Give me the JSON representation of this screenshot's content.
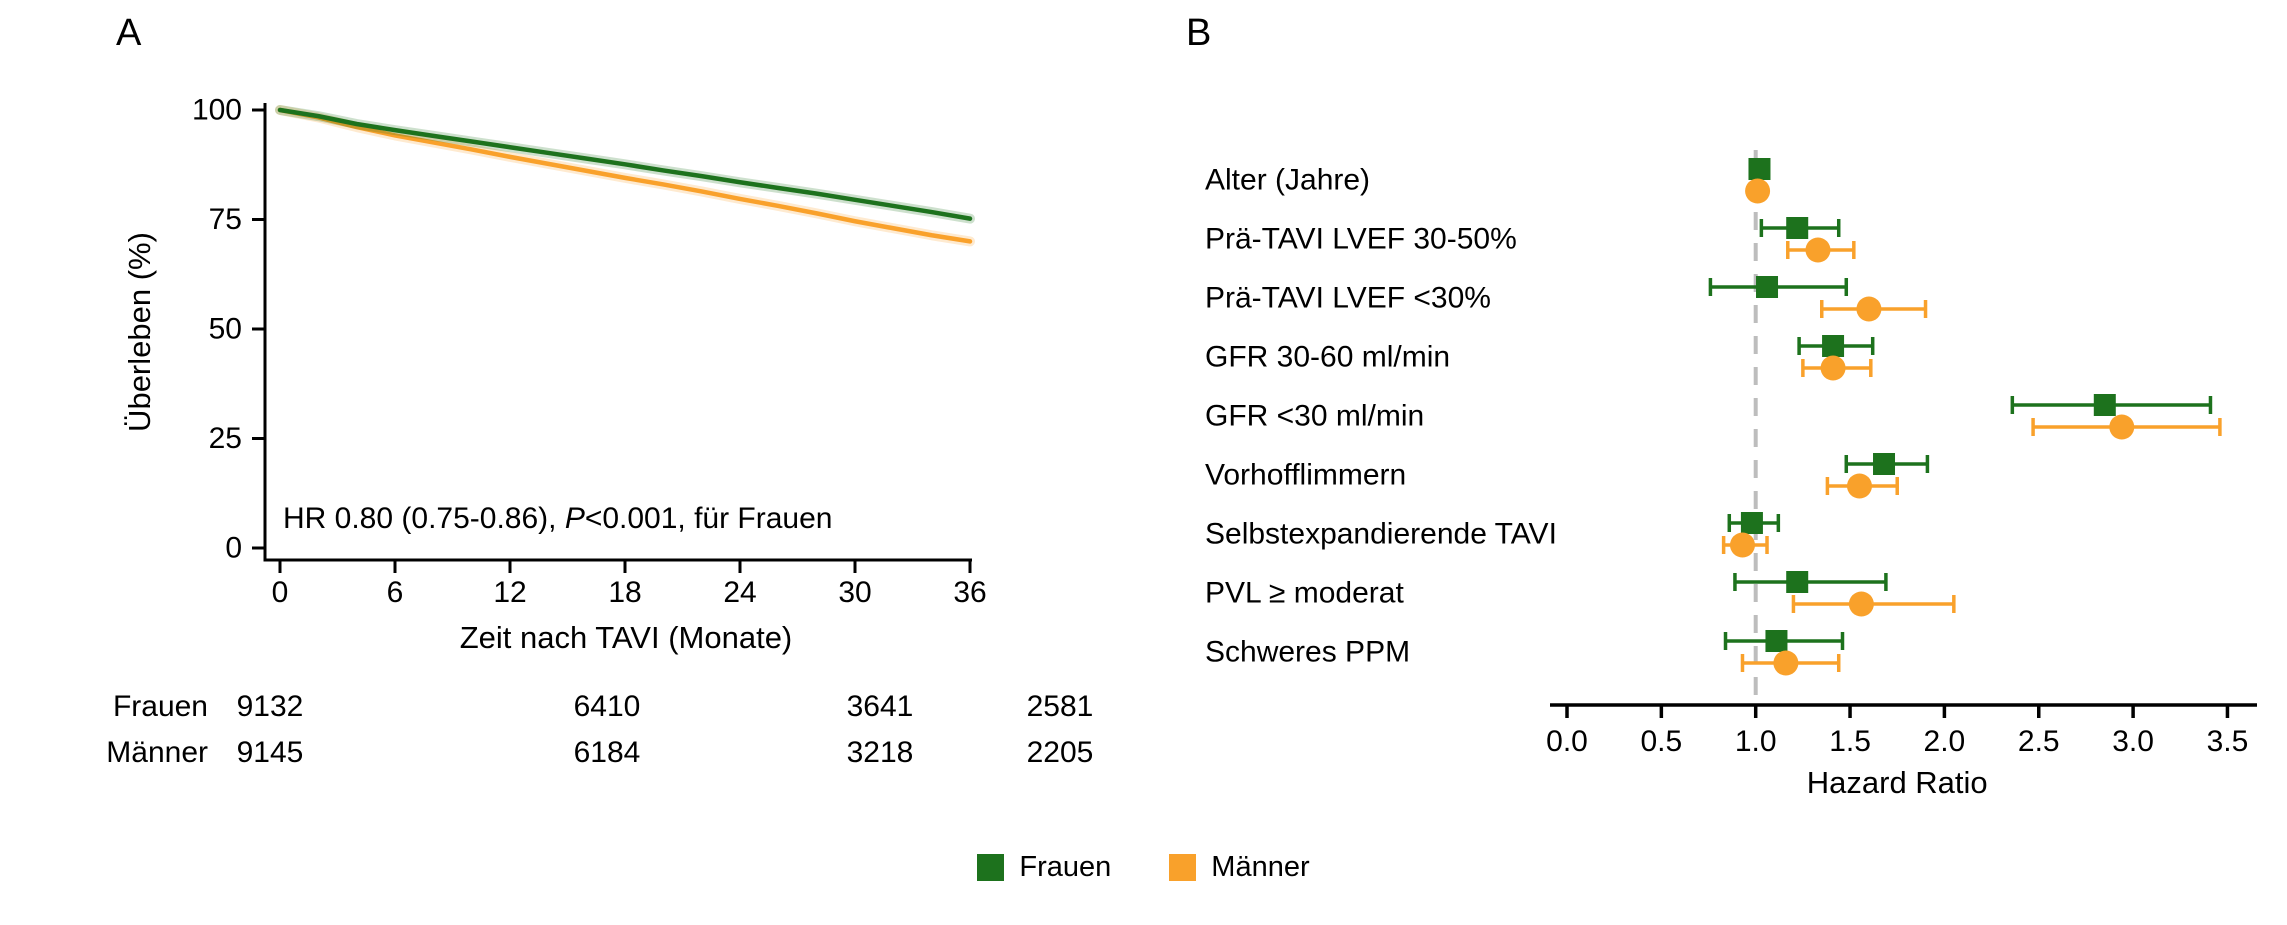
{
  "colors": {
    "frauen": "#1d721d",
    "maenner": "#F9A12B",
    "refline": "#bdbdbd",
    "axis": "#000000"
  },
  "legend": {
    "items": [
      {
        "label": "Frauen",
        "color": "#1d721d"
      },
      {
        "label": "Männer",
        "color": "#F9A12B"
      }
    ]
  },
  "chart_data": [
    {
      "type": "line",
      "variant": "kaplan-meier",
      "panel_label": "A",
      "xlabel": "Zeit nach TAVI (Monate)",
      "ylabel": "Überleben (%)",
      "xlim": [
        0,
        36
      ],
      "ylim": [
        0,
        100
      ],
      "xticks": [
        0,
        6,
        12,
        18,
        24,
        30,
        36
      ],
      "yticks": [
        0,
        25,
        50,
        75,
        100
      ],
      "grid": false,
      "annotation": {
        "pre": "HR 0.80 (0.75-0.86), ",
        "italic": "P",
        "post": "<0.001, für Frauen"
      },
      "series": [
        {
          "name": "Männer",
          "color": "#F9A12B",
          "x": [
            0,
            2,
            4,
            6,
            8,
            10,
            12,
            14,
            16,
            18,
            20,
            22,
            24,
            26,
            28,
            30,
            32,
            34,
            36
          ],
          "y": [
            100,
            98.3,
            96.1,
            94.2,
            92.6,
            91.0,
            89.3,
            87.7,
            86.1,
            84.5,
            83.0,
            81.4,
            79.7,
            78.1,
            76.4,
            74.6,
            73.0,
            71.4,
            70.0
          ]
        },
        {
          "name": "Frauen",
          "color": "#1d721d",
          "x": [
            0,
            2,
            4,
            6,
            8,
            10,
            12,
            14,
            16,
            18,
            20,
            22,
            24,
            26,
            28,
            30,
            32,
            34,
            36
          ],
          "y": [
            100,
            98.6,
            96.8,
            95.4,
            94.1,
            92.8,
            91.5,
            90.2,
            88.9,
            87.6,
            86.2,
            84.9,
            83.5,
            82.2,
            80.9,
            79.5,
            78.1,
            76.7,
            75.2
          ]
        }
      ],
      "risk_table": {
        "columns_months": [
          0,
          12,
          24,
          36
        ],
        "rows": [
          {
            "label": "Frauen",
            "values": [
              "9132",
              "6410",
              "3641",
              "2581"
            ]
          },
          {
            "label": "Männer",
            "values": [
              "9145",
              "6184",
              "3218",
              "2205"
            ]
          }
        ]
      }
    },
    {
      "type": "scatter",
      "variant": "forest",
      "panel_label": "B",
      "xlabel": "Hazard Ratio",
      "xlim": [
        0,
        3.5
      ],
      "xtick_labels": [
        "0.0",
        "0.5",
        "1.0",
        "1.5",
        "2.0",
        "2.5",
        "3.0",
        "3.5"
      ],
      "refline": 1.0,
      "rows": [
        {
          "label": "Alter (Jahre)",
          "frauen": {
            "hr": 1.02,
            "lo": 1.0,
            "hi": 1.04
          },
          "maenner": {
            "hr": 1.01,
            "lo": 0.99,
            "hi": 1.03
          }
        },
        {
          "label": "Prä-TAVI LVEF 30-50%",
          "frauen": {
            "hr": 1.22,
            "lo": 1.03,
            "hi": 1.44
          },
          "maenner": {
            "hr": 1.33,
            "lo": 1.17,
            "hi": 1.52
          }
        },
        {
          "label": "Prä-TAVI LVEF <30%",
          "frauen": {
            "hr": 1.06,
            "lo": 0.76,
            "hi": 1.48
          },
          "maenner": {
            "hr": 1.6,
            "lo": 1.35,
            "hi": 1.9
          }
        },
        {
          "label": "GFR 30-60 ml/min",
          "frauen": {
            "hr": 1.41,
            "lo": 1.23,
            "hi": 1.62
          },
          "maenner": {
            "hr": 1.41,
            "lo": 1.25,
            "hi": 1.61
          }
        },
        {
          "label": "GFR <30 ml/min",
          "frauen": {
            "hr": 2.85,
            "lo": 2.36,
            "hi": 3.41
          },
          "maenner": {
            "hr": 2.94,
            "lo": 2.47,
            "hi": 3.46
          }
        },
        {
          "label": "Vorhofflimmern",
          "frauen": {
            "hr": 1.68,
            "lo": 1.48,
            "hi": 1.91
          },
          "maenner": {
            "hr": 1.55,
            "lo": 1.38,
            "hi": 1.75
          }
        },
        {
          "label": "Selbstexpandierende TAVI",
          "frauen": {
            "hr": 0.98,
            "lo": 0.86,
            "hi": 1.12
          },
          "maenner": {
            "hr": 0.93,
            "lo": 0.83,
            "hi": 1.06
          }
        },
        {
          "label": "PVL ≥ moderat",
          "frauen": {
            "hr": 1.22,
            "lo": 0.89,
            "hi": 1.69
          },
          "maenner": {
            "hr": 1.56,
            "lo": 1.2,
            "hi": 2.05
          }
        },
        {
          "label": "Schweres PPM",
          "frauen": {
            "hr": 1.11,
            "lo": 0.84,
            "hi": 1.46
          },
          "maenner": {
            "hr": 1.16,
            "lo": 0.93,
            "hi": 1.44
          }
        }
      ]
    }
  ]
}
